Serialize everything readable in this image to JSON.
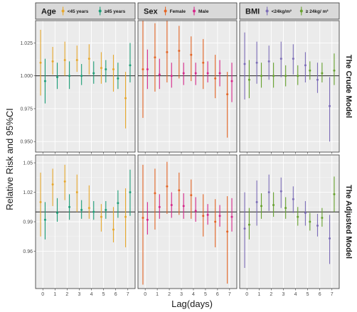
{
  "chart_data": {
    "type": "errorbar",
    "ylabel": "Relative Risk and 95%CI",
    "xlabel": "Lag(days)",
    "x_ticks": [
      "0",
      "1",
      "2",
      "3",
      "4",
      "5",
      "6",
      "7"
    ],
    "reference_line": 1,
    "grid": true,
    "facet_rows": [
      {
        "key": "crude",
        "label": "The Crude Model",
        "ylim": [
          0.942,
          1.042
        ],
        "y_ticks": [
          0.95,
          0.975,
          1.0,
          1.025
        ],
        "y_tick_labels": [
          "0.950",
          "0.975",
          "1.000",
          "1.025"
        ]
      },
      {
        "key": "adjusted",
        "label": "The Adjusted Model",
        "ylim": [
          0.922,
          1.058
        ],
        "y_ticks": [
          0.96,
          0.99,
          1.02,
          1.05
        ],
        "y_tick_labels": [
          "0.96",
          "0.99",
          "1.02",
          "1.05"
        ]
      }
    ],
    "facet_cols": [
      {
        "key": "age",
        "title": "Age",
        "groups": [
          {
            "name": "<45 years",
            "color": "#e7a82d"
          },
          {
            "name": "≥45 years",
            "color": "#1d9e77"
          }
        ],
        "series": {
          "crude": [
            [
              {
                "lag": 0,
                "est": 1.01,
                "lo": 0.985,
                "hi": 1.035
              },
              {
                "lag": 1,
                "est": 1.011,
                "lo": 1.001,
                "hi": 1.022
              },
              {
                "lag": 2,
                "est": 1.012,
                "lo": 1.0,
                "hi": 1.026
              },
              {
                "lag": 3,
                "est": 1.012,
                "lo": 1.003,
                "hi": 1.023
              },
              {
                "lag": 4,
                "est": 1.013,
                "lo": 1.001,
                "hi": 1.024
              },
              {
                "lag": 5,
                "est": 1.006,
                "lo": 0.994,
                "hi": 1.018
              },
              {
                "lag": 6,
                "est": 1.005,
                "lo": 0.988,
                "hi": 1.016
              },
              {
                "lag": 7,
                "est": 0.983,
                "lo": 0.96,
                "hi": 1.003
              }
            ],
            [
              {
                "lag": 0,
                "est": 0.996,
                "lo": 0.979,
                "hi": 1.013
              },
              {
                "lag": 1,
                "est": 0.999,
                "lo": 0.99,
                "hi": 1.01
              },
              {
                "lag": 2,
                "est": 1.0,
                "lo": 0.99,
                "hi": 1.011
              },
              {
                "lag": 3,
                "est": 1.0,
                "lo": 0.993,
                "hi": 1.009
              },
              {
                "lag": 4,
                "est": 1.002,
                "lo": 0.994,
                "hi": 1.011
              },
              {
                "lag": 5,
                "est": 1.005,
                "lo": 0.995,
                "hi": 1.012
              },
              {
                "lag": 6,
                "est": 0.998,
                "lo": 0.99,
                "hi": 1.01
              },
              {
                "lag": 7,
                "est": 1.008,
                "lo": 0.995,
                "hi": 1.025
              }
            ]
          ],
          "adjusted": [
            [
              {
                "lag": 0,
                "est": 1.01,
                "lo": 0.975,
                "hi": 1.04
              },
              {
                "lag": 1,
                "est": 1.028,
                "lo": 1.006,
                "hi": 1.044
              },
              {
                "lag": 2,
                "est": 1.031,
                "lo": 1.012,
                "hi": 1.048
              },
              {
                "lag": 3,
                "est": 1.02,
                "lo": 1.0,
                "hi": 1.038
              },
              {
                "lag": 4,
                "est": 1.004,
                "lo": 0.993,
                "hi": 1.027
              },
              {
                "lag": 5,
                "est": 0.995,
                "lo": 0.98,
                "hi": 1.008
              },
              {
                "lag": 6,
                "est": 0.982,
                "lo": 0.969,
                "hi": 1.005
              },
              {
                "lag": 7,
                "est": 0.995,
                "lo": 0.964,
                "hi": 1.024
              }
            ],
            [
              {
                "lag": 0,
                "est": 0.992,
                "lo": 0.972,
                "hi": 1.01
              },
              {
                "lag": 1,
                "est": 0.999,
                "lo": 0.99,
                "hi": 1.014
              },
              {
                "lag": 2,
                "est": 1.005,
                "lo": 0.992,
                "hi": 1.018
              },
              {
                "lag": 3,
                "est": 1.002,
                "lo": 0.993,
                "hi": 1.012
              },
              {
                "lag": 4,
                "est": 1.0,
                "lo": 0.992,
                "hi": 1.011
              },
              {
                "lag": 5,
                "est": 1.002,
                "lo": 0.993,
                "hi": 1.011
              },
              {
                "lag": 6,
                "est": 1.009,
                "lo": 0.994,
                "hi": 1.022
              },
              {
                "lag": 7,
                "est": 1.02,
                "lo": 0.996,
                "hi": 1.043
              }
            ]
          ]
        }
      },
      {
        "key": "sex",
        "title": "Sex",
        "groups": [
          {
            "name": "Female",
            "color": "#e46525"
          },
          {
            "name": "Male",
            "color": "#d6278a"
          }
        ],
        "series": {
          "crude": [
            [
              {
                "lag": 0,
                "est": 1.005,
                "lo": 0.968,
                "hi": 1.042
              },
              {
                "lag": 1,
                "est": 1.014,
                "lo": 0.988,
                "hi": 1.04
              },
              {
                "lag": 2,
                "est": 1.018,
                "lo": 0.995,
                "hi": 1.042
              },
              {
                "lag": 3,
                "est": 1.019,
                "lo": 0.998,
                "hi": 1.038
              },
              {
                "lag": 4,
                "est": 1.016,
                "lo": 0.996,
                "hi": 1.03
              },
              {
                "lag": 5,
                "est": 1.01,
                "lo": 0.99,
                "hi": 1.028
              },
              {
                "lag": 6,
                "est": 0.998,
                "lo": 0.983,
                "hi": 1.016
              },
              {
                "lag": 7,
                "est": 0.986,
                "lo": 0.953,
                "hi": 1.003
              }
            ],
            [
              {
                "lag": 0,
                "est": 1.005,
                "lo": 0.99,
                "hi": 1.02
              },
              {
                "lag": 1,
                "est": 1.001,
                "lo": 0.99,
                "hi": 1.013
              },
              {
                "lag": 2,
                "est": 1.0,
                "lo": 0.991,
                "hi": 1.01
              },
              {
                "lag": 3,
                "est": 1.002,
                "lo": 0.993,
                "hi": 1.01
              },
              {
                "lag": 4,
                "est": 1.002,
                "lo": 0.993,
                "hi": 1.01
              },
              {
                "lag": 5,
                "est": 1.002,
                "lo": 0.995,
                "hi": 1.011
              },
              {
                "lag": 6,
                "est": 1.002,
                "lo": 0.992,
                "hi": 1.012
              },
              {
                "lag": 7,
                "est": 0.996,
                "lo": 0.98,
                "hi": 1.01
              }
            ]
          ],
          "adjusted": [
            [
              {
                "lag": 0,
                "est": 0.994,
                "lo": 0.926,
                "hi": 1.048
              },
              {
                "lag": 1,
                "est": 1.019,
                "lo": 0.982,
                "hi": 1.044
              },
              {
                "lag": 2,
                "est": 1.026,
                "lo": 0.998,
                "hi": 1.051
              },
              {
                "lag": 3,
                "est": 1.022,
                "lo": 0.997,
                "hi": 1.04
              },
              {
                "lag": 4,
                "est": 1.017,
                "lo": 0.993,
                "hi": 1.033
              },
              {
                "lag": 5,
                "est": 0.996,
                "lo": 0.975,
                "hi": 1.018
              },
              {
                "lag": 6,
                "est": 0.99,
                "lo": 0.964,
                "hi": 1.013
              },
              {
                "lag": 7,
                "est": 0.98,
                "lo": 0.927,
                "hi": 1.016
              }
            ],
            [
              {
                "lag": 0,
                "est": 0.992,
                "lo": 0.977,
                "hi": 1.01
              },
              {
                "lag": 1,
                "est": 1.005,
                "lo": 0.993,
                "hi": 1.018
              },
              {
                "lag": 2,
                "est": 1.007,
                "lo": 0.994,
                "hi": 1.02
              },
              {
                "lag": 3,
                "est": 1.006,
                "lo": 0.993,
                "hi": 1.019
              },
              {
                "lag": 4,
                "est": 1.001,
                "lo": 0.99,
                "hi": 1.015
              },
              {
                "lag": 5,
                "est": 0.997,
                "lo": 0.987,
                "hi": 1.008
              },
              {
                "lag": 6,
                "est": 0.996,
                "lo": 0.985,
                "hi": 1.007
              },
              {
                "lag": 7,
                "est": 0.995,
                "lo": 0.98,
                "hi": 1.014
              }
            ]
          ]
        }
      },
      {
        "key": "bmi",
        "title": "BMI",
        "groups": [
          {
            "name": "<24kg/m²",
            "color": "#7c6db8"
          },
          {
            "name": "≥ 24kg/ m²",
            "color": "#67a22e"
          }
        ],
        "series": {
          "crude": [
            [
              {
                "lag": 0,
                "est": 1.009,
                "lo": 0.982,
                "hi": 1.033
              },
              {
                "lag": 1,
                "est": 1.01,
                "lo": 0.994,
                "hi": 1.026
              },
              {
                "lag": 2,
                "est": 1.011,
                "lo": 0.997,
                "hi": 1.023
              },
              {
                "lag": 3,
                "est": 1.013,
                "lo": 0.999,
                "hi": 1.026
              },
              {
                "lag": 4,
                "est": 1.013,
                "lo": 1.001,
                "hi": 1.024
              },
              {
                "lag": 5,
                "est": 1.008,
                "lo": 0.995,
                "hi": 1.018
              },
              {
                "lag": 6,
                "est": 0.997,
                "lo": 0.987,
                "hi": 1.01
              },
              {
                "lag": 7,
                "est": 0.977,
                "lo": 0.95,
                "hi": 0.999
              }
            ],
            [
              {
                "lag": 0,
                "est": 0.997,
                "lo": 0.983,
                "hi": 1.012
              },
              {
                "lag": 1,
                "est": 1.0,
                "lo": 0.991,
                "hi": 1.01
              },
              {
                "lag": 2,
                "est": 1.0,
                "lo": 0.991,
                "hi": 1.01
              },
              {
                "lag": 3,
                "est": 1.0,
                "lo": 0.992,
                "hi": 1.008
              },
              {
                "lag": 4,
                "est": 1.0,
                "lo": 0.993,
                "hi": 1.008
              },
              {
                "lag": 5,
                "est": 1.004,
                "lo": 0.997,
                "hi": 1.011
              },
              {
                "lag": 6,
                "est": 1.002,
                "lo": 0.995,
                "hi": 1.01
              },
              {
                "lag": 7,
                "est": 1.004,
                "lo": 0.993,
                "hi": 1.017
              }
            ]
          ],
          "adjusted": [
            [
              {
                "lag": 0,
                "est": 0.983,
                "lo": 0.943,
                "hi": 1.02
              },
              {
                "lag": 1,
                "est": 1.01,
                "lo": 0.986,
                "hi": 1.032
              },
              {
                "lag": 2,
                "est": 1.02,
                "lo": 1.001,
                "hi": 1.038
              },
              {
                "lag": 3,
                "est": 1.021,
                "lo": 1.004,
                "hi": 1.035
              },
              {
                "lag": 4,
                "est": 1.013,
                "lo": 0.999,
                "hi": 1.026
              },
              {
                "lag": 5,
                "est": 0.999,
                "lo": 0.986,
                "hi": 1.011
              },
              {
                "lag": 6,
                "est": 0.986,
                "lo": 0.975,
                "hi": 0.998
              },
              {
                "lag": 7,
                "est": 0.973,
                "lo": 0.947,
                "hi": 0.997
              }
            ],
            [
              {
                "lag": 0,
                "est": 0.987,
                "lo": 0.972,
                "hi": 1.004
              },
              {
                "lag": 1,
                "est": 1.006,
                "lo": 0.993,
                "hi": 1.019
              },
              {
                "lag": 2,
                "est": 1.007,
                "lo": 0.995,
                "hi": 1.02
              },
              {
                "lag": 3,
                "est": 1.004,
                "lo": 0.993,
                "hi": 1.015
              },
              {
                "lag": 4,
                "est": 0.995,
                "lo": 0.986,
                "hi": 1.005
              },
              {
                "lag": 5,
                "est": 0.99,
                "lo": 0.981,
                "hi": 0.999
              },
              {
                "lag": 6,
                "est": 0.994,
                "lo": 0.985,
                "hi": 1.004
              },
              {
                "lag": 7,
                "est": 1.018,
                "lo": 1.0,
                "hi": 1.036
              }
            ]
          ]
        }
      }
    ]
  }
}
